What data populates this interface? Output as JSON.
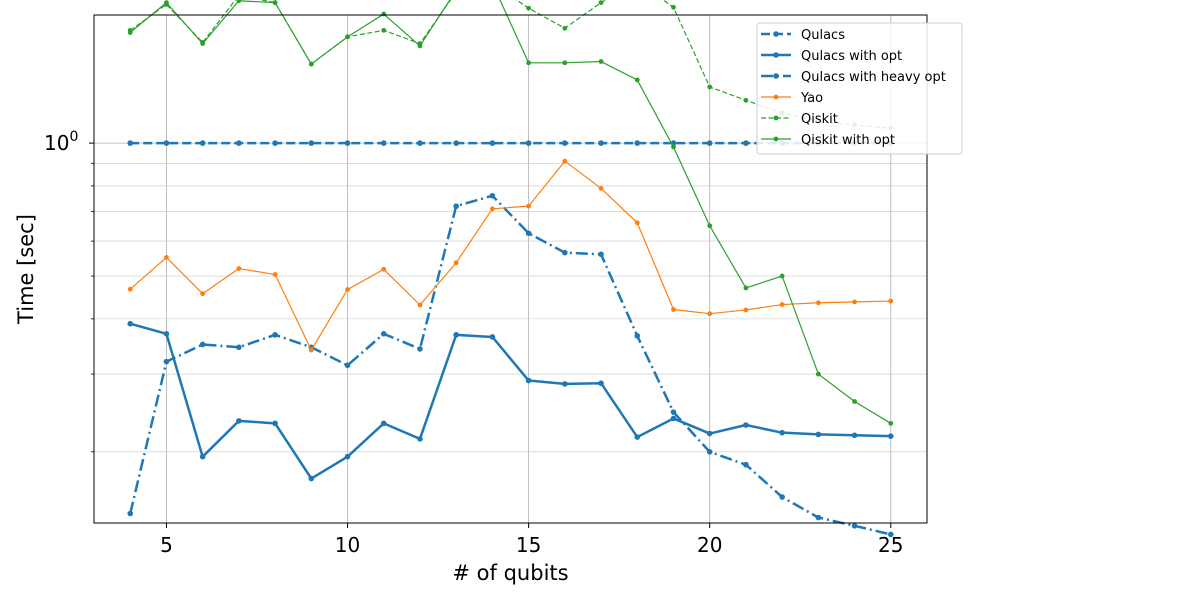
{
  "chart_data": {
    "type": "line",
    "title": "",
    "xlabel": "# of qubits",
    "ylabel": "Time [sec]",
    "xlim": [
      3.0,
      26.0
    ],
    "ylim": [
      0.138,
      1.95
    ],
    "yscale": "log",
    "grid": true,
    "legend_position": "top-right",
    "x": [
      4,
      5,
      6,
      7,
      8,
      9,
      10,
      11,
      12,
      13,
      14,
      15,
      16,
      17,
      18,
      19,
      20,
      21,
      22,
      23,
      24,
      25
    ],
    "xticks": [
      5,
      10,
      15,
      20,
      25
    ],
    "yticks": [
      {
        "value": 1.0,
        "label": "10",
        "exp": "0"
      }
    ],
    "series": [
      {
        "name": "Qulacs",
        "color": "#1f77b4",
        "style": "dashed",
        "width": 2.5,
        "values": [
          1.0,
          1.0,
          1.0,
          1.0,
          1.0,
          1.0,
          1.0,
          1.0,
          1.0,
          1.0,
          1.0,
          1.0,
          1.0,
          1.0,
          1.0,
          1.0,
          1.0,
          1.0,
          1.0,
          1.0,
          1.0,
          1.0
        ]
      },
      {
        "name": "Qulacs with opt",
        "color": "#1f77b4",
        "style": "solid",
        "width": 2.5,
        "values": [
          0.39,
          0.37,
          0.195,
          0.235,
          0.232,
          0.174,
          0.195,
          0.232,
          0.214,
          0.368,
          0.364,
          0.29,
          0.285,
          0.286,
          0.216,
          0.238,
          0.22,
          0.23,
          0.221,
          0.219,
          0.218,
          0.217
        ]
      },
      {
        "name": "Qulacs with heavy opt",
        "color": "#1f77b4",
        "style": "dashdot",
        "width": 2.5,
        "values": [
          0.145,
          0.32,
          0.35,
          0.345,
          0.368,
          0.345,
          0.314,
          0.37,
          0.342,
          0.72,
          0.76,
          0.625,
          0.565,
          0.56,
          0.366,
          0.246,
          0.2,
          0.187,
          0.158,
          0.142,
          0.136,
          0.13
        ]
      },
      {
        "name": "Yao",
        "color": "#ff7f0e",
        "style": "solid",
        "width": 1.2,
        "values": [
          0.467,
          0.551,
          0.456,
          0.52,
          0.504,
          0.34,
          0.466,
          0.518,
          0.43,
          0.536,
          0.71,
          0.72,
          0.91,
          0.79,
          0.66,
          0.42,
          0.411,
          0.419,
          0.431,
          0.435,
          0.437,
          0.439
        ]
      },
      {
        "name": "Qiskit",
        "color": "#2ca02c",
        "style": "dashed",
        "width": 1.2,
        "values": [
          1.8,
          2.06,
          1.69,
          2.16,
          2.08,
          1.51,
          1.74,
          1.8,
          1.68,
          2.2,
          2.3,
          2.02,
          1.82,
          2.08,
          2.32,
          2.03,
          1.34,
          1.25,
          1.17,
          1.12,
          1.1,
          1.08
        ]
      },
      {
        "name": "Qiskit with opt",
        "color": "#2ca02c",
        "style": "solid",
        "width": 1.2,
        "values": [
          1.78,
          2.08,
          1.68,
          2.1,
          2.08,
          1.51,
          1.74,
          1.96,
          1.66,
          2.22,
          2.3,
          1.52,
          1.52,
          1.53,
          1.39,
          0.98,
          0.65,
          0.47,
          0.5,
          0.3,
          0.26,
          0.232
        ]
      }
    ]
  }
}
